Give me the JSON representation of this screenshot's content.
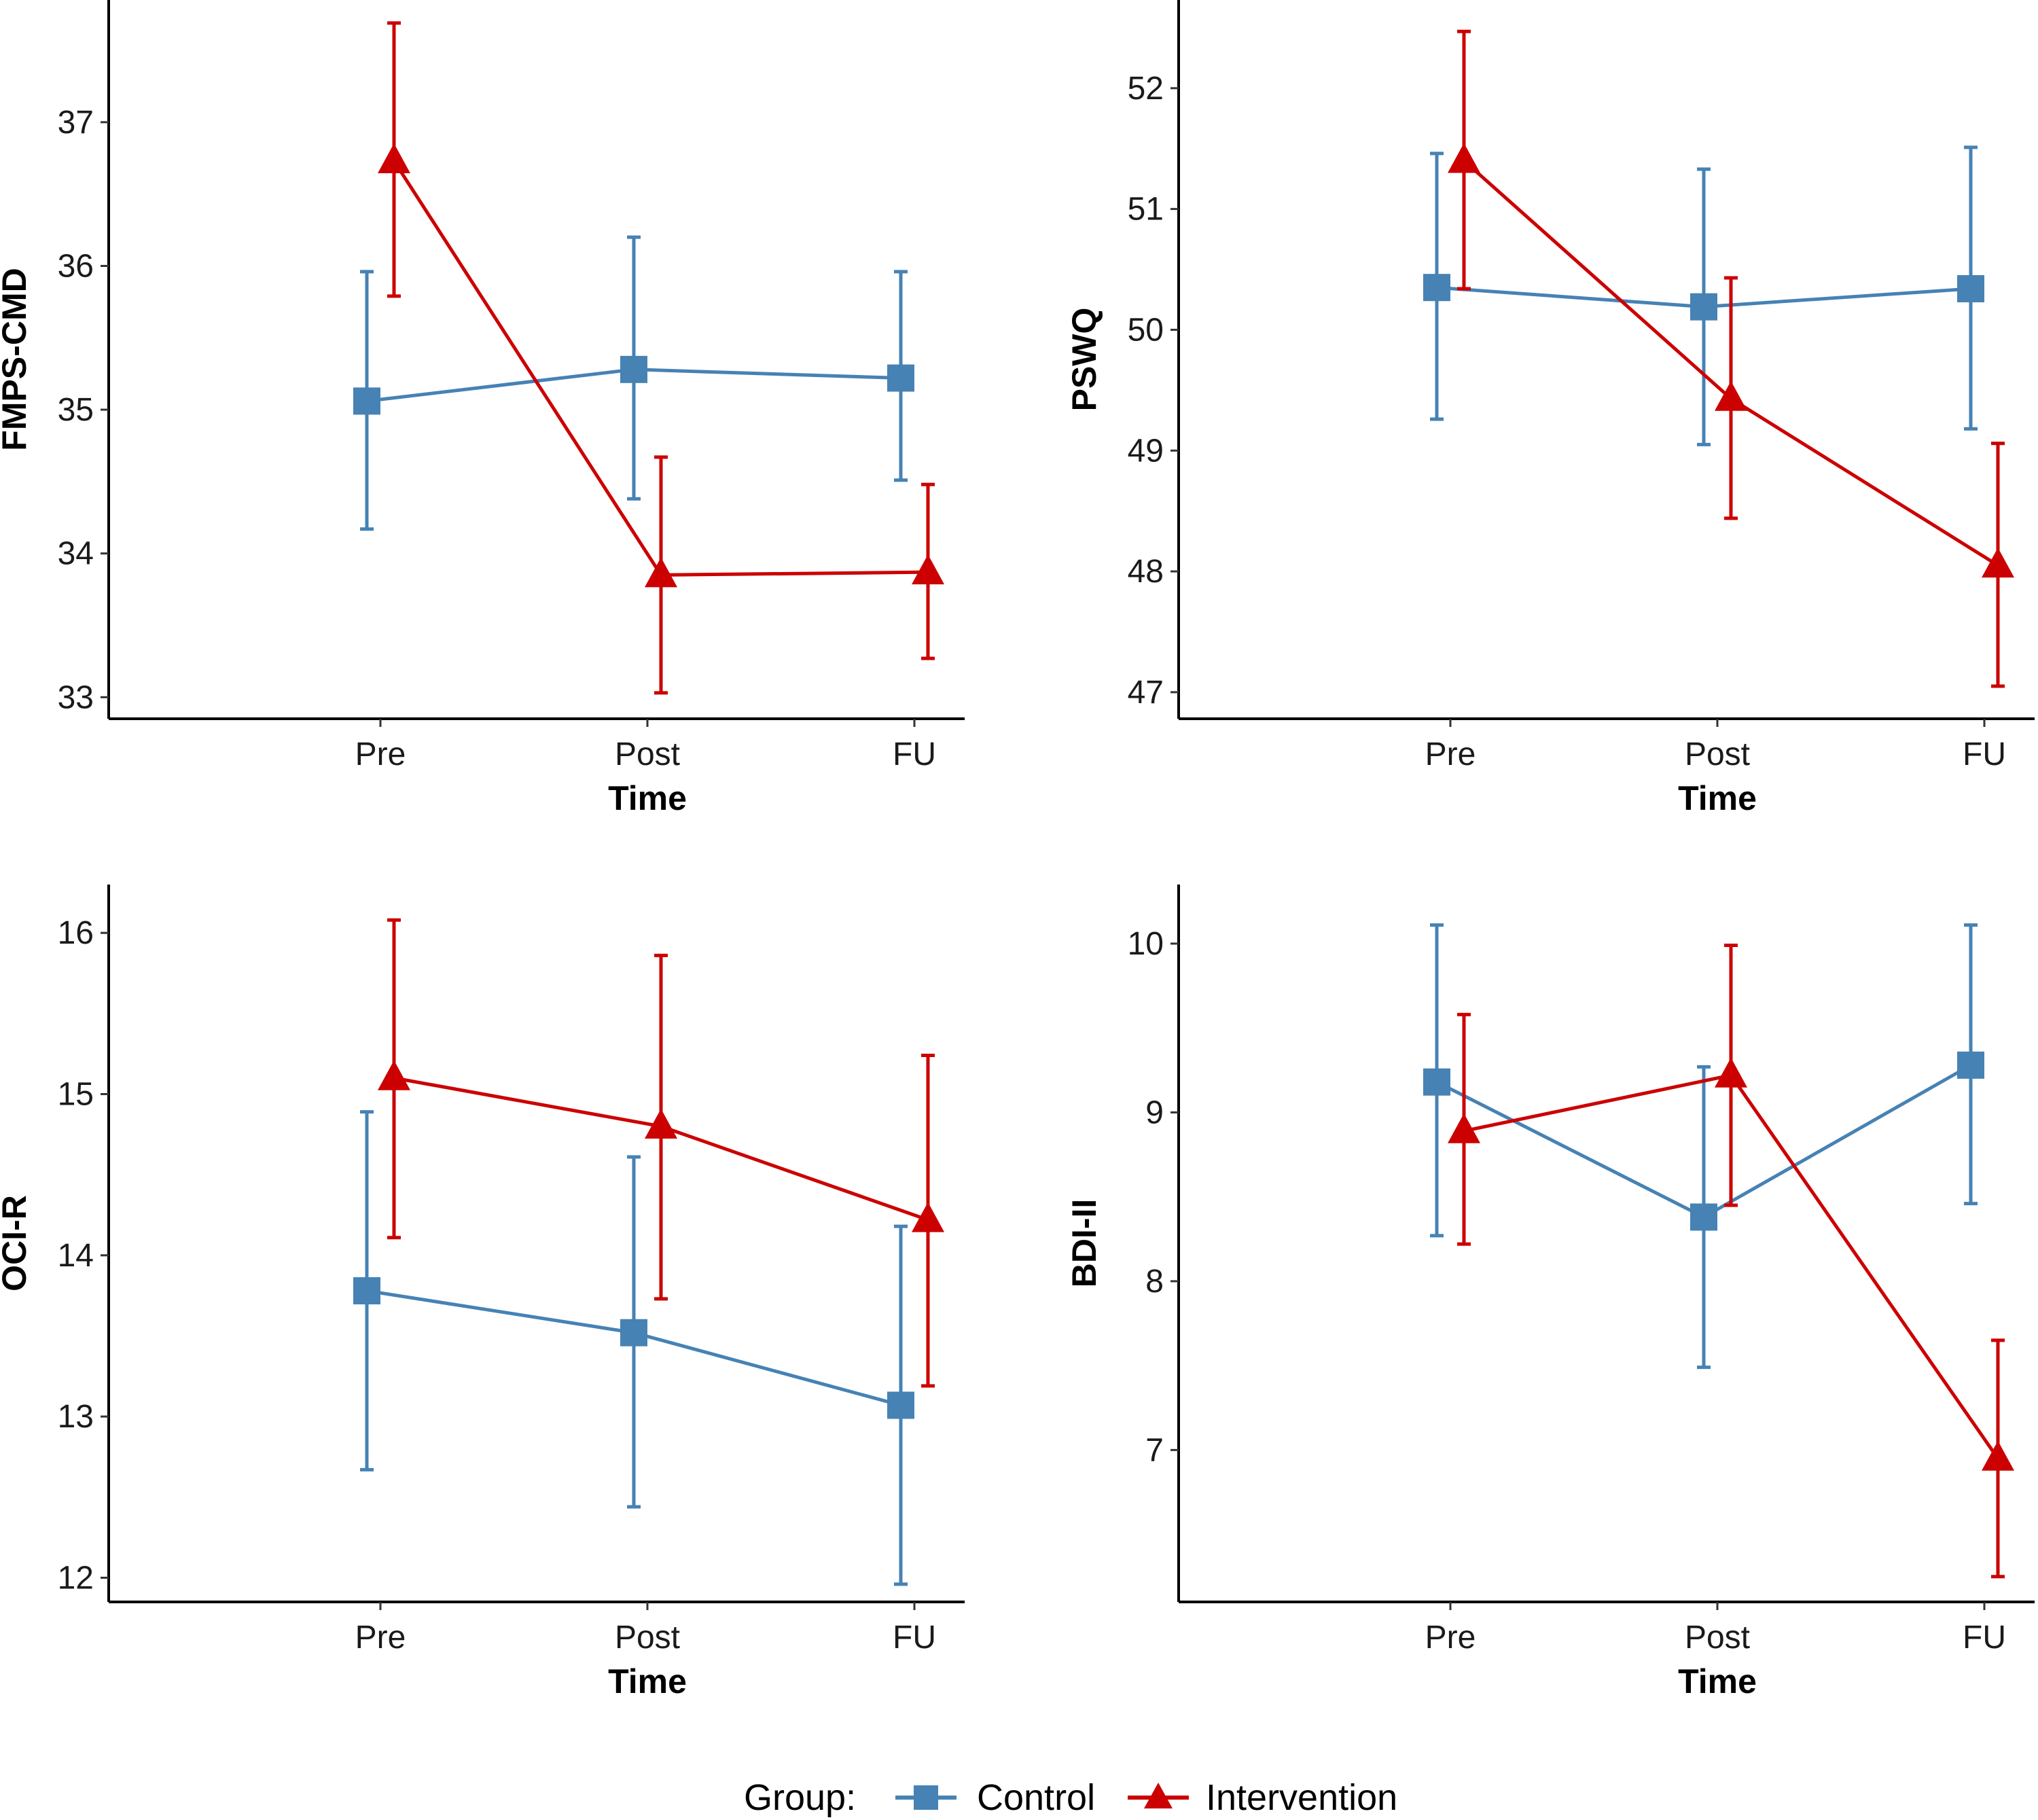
{
  "chart_data": [
    {
      "type": "line",
      "title": "",
      "xlabel": "Time",
      "ylabel": "FMPS-CMD",
      "categories": [
        "Pre",
        "Post",
        "FU"
      ],
      "ylim": [
        32.85,
        37.85
      ],
      "yticks": [
        33,
        34,
        35,
        36,
        37
      ],
      "series": [
        {
          "name": "Control",
          "values": [
            35.06,
            35.28,
            35.22
          ],
          "lower": [
            34.17,
            34.38,
            34.51
          ],
          "upper": [
            35.96,
            36.2,
            35.96
          ]
        },
        {
          "name": "Intervention",
          "values": [
            36.73,
            33.85,
            33.87
          ],
          "lower": [
            35.79,
            33.03,
            33.27
          ],
          "upper": [
            37.69,
            34.67,
            34.48
          ]
        }
      ]
    },
    {
      "type": "line",
      "title": "",
      "xlabel": "Time",
      "ylabel": "PSWQ",
      "categories": [
        "Pre",
        "Post",
        "FU"
      ],
      "ylim": [
        46.78,
        52.73
      ],
      "yticks": [
        47,
        48,
        49,
        50,
        51,
        52
      ],
      "series": [
        {
          "name": "Control",
          "values": [
            50.35,
            50.19,
            50.34
          ],
          "lower": [
            49.26,
            49.05,
            49.18
          ],
          "upper": [
            51.46,
            51.33,
            51.51
          ]
        },
        {
          "name": "Intervention",
          "values": [
            51.4,
            49.43,
            48.05
          ],
          "lower": [
            50.34,
            48.44,
            47.05
          ],
          "upper": [
            52.47,
            50.43,
            49.06
          ]
        }
      ]
    },
    {
      "type": "line",
      "title": "",
      "xlabel": "Time",
      "ylabel": "OCI-R",
      "categories": [
        "Pre",
        "Post",
        "FU"
      ],
      "ylim": [
        11.85,
        16.3
      ],
      "yticks": [
        12,
        13,
        14,
        15,
        16
      ],
      "series": [
        {
          "name": "Control",
          "values": [
            13.78,
            13.52,
            13.07
          ],
          "lower": [
            12.67,
            12.44,
            11.96
          ],
          "upper": [
            14.89,
            14.61,
            14.18
          ]
        },
        {
          "name": "Intervention",
          "values": [
            15.1,
            14.8,
            14.22
          ],
          "lower": [
            14.11,
            13.73,
            13.19
          ],
          "upper": [
            16.08,
            15.86,
            15.24
          ]
        }
      ]
    },
    {
      "type": "line",
      "title": "",
      "xlabel": "Time",
      "ylabel": "BDI-II",
      "categories": [
        "Pre",
        "Post",
        "FU"
      ],
      "ylim": [
        6.1,
        10.35
      ],
      "yticks": [
        7,
        8,
        9,
        10
      ],
      "series": [
        {
          "name": "Control",
          "values": [
            9.18,
            8.38,
            9.28
          ],
          "lower": [
            8.27,
            7.49,
            8.46
          ],
          "upper": [
            10.11,
            9.27,
            10.11
          ]
        },
        {
          "name": "Intervention",
          "values": [
            8.89,
            9.22,
            6.95
          ],
          "lower": [
            8.22,
            8.45,
            6.25
          ],
          "upper": [
            9.58,
            9.99,
            7.65
          ]
        }
      ]
    }
  ],
  "legend": {
    "title": "Group:",
    "entries": [
      {
        "name": "Control",
        "color": "#4682B4",
        "shape": "square"
      },
      {
        "name": "Intervention",
        "color": "#CC0000",
        "shape": "triangle"
      }
    ]
  }
}
